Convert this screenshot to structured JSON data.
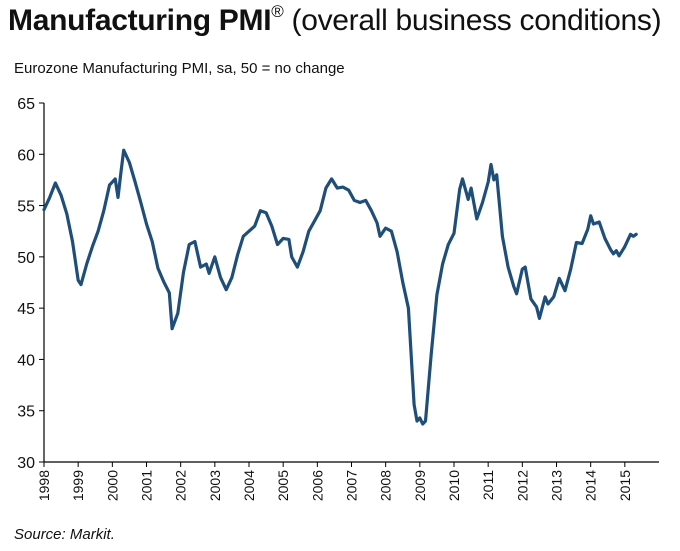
{
  "title": {
    "bold": "Manufacturing PMI",
    "reg": "®",
    "rest": " (overall business conditions)"
  },
  "subtitle": "Eurozone Manufacturing PMI, sa, 50 = no change",
  "source": "Source: Markit.",
  "colors": {
    "line": "#1f4e79",
    "axis": "#000000",
    "text": "#111111"
  },
  "chart_data": {
    "type": "line",
    "xlabel": "",
    "ylabel": "",
    "ylim": [
      30,
      65
    ],
    "xlim": [
      "1998-01",
      "2015-12"
    ],
    "yticks": [
      30,
      35,
      40,
      45,
      50,
      55,
      60,
      65
    ],
    "xticks": [
      "1998",
      "1999",
      "2000",
      "2001",
      "2002",
      "2003",
      "2004",
      "2005",
      "2006",
      "2007",
      "2008",
      "2009",
      "2010",
      "2011",
      "2012",
      "2013",
      "2014",
      "2015"
    ],
    "grid": false,
    "series": [
      {
        "name": "",
        "points": [
          [
            "1998-01",
            54.6
          ],
          [
            "1998-03",
            55.8
          ],
          [
            "1998-05",
            57.2
          ],
          [
            "1998-07",
            56.0
          ],
          [
            "1998-09",
            54.2
          ],
          [
            "1998-11",
            51.5
          ],
          [
            "1999-01",
            47.7
          ],
          [
            "1999-02",
            47.3
          ],
          [
            "1999-04",
            49.3
          ],
          [
            "1999-06",
            51.0
          ],
          [
            "1999-08",
            52.5
          ],
          [
            "1999-10",
            54.5
          ],
          [
            "1999-12",
            57.0
          ],
          [
            "2000-02",
            57.6
          ],
          [
            "2000-03",
            55.8
          ],
          [
            "2000-04",
            58.2
          ],
          [
            "2000-05",
            60.4
          ],
          [
            "2000-07",
            59.2
          ],
          [
            "2000-09",
            57.3
          ],
          [
            "2000-11",
            55.3
          ],
          [
            "2001-01",
            53.2
          ],
          [
            "2001-03",
            51.5
          ],
          [
            "2001-05",
            48.9
          ],
          [
            "2001-07",
            47.6
          ],
          [
            "2001-09",
            46.5
          ],
          [
            "2001-10",
            43.0
          ],
          [
            "2001-12",
            44.5
          ],
          [
            "2002-02",
            48.5
          ],
          [
            "2002-04",
            51.2
          ],
          [
            "2002-06",
            51.5
          ],
          [
            "2002-08",
            49.0
          ],
          [
            "2002-10",
            49.3
          ],
          [
            "2002-11",
            48.4
          ],
          [
            "2003-01",
            50.0
          ],
          [
            "2003-03",
            48.0
          ],
          [
            "2003-05",
            46.8
          ],
          [
            "2003-07",
            48.0
          ],
          [
            "2003-09",
            50.2
          ],
          [
            "2003-11",
            52.0
          ],
          [
            "2004-01",
            52.5
          ],
          [
            "2004-03",
            53.0
          ],
          [
            "2004-05",
            54.5
          ],
          [
            "2004-07",
            54.3
          ],
          [
            "2004-09",
            53.0
          ],
          [
            "2004-11",
            51.2
          ],
          [
            "2005-01",
            51.8
          ],
          [
            "2005-03",
            51.7
          ],
          [
            "2005-04",
            50.0
          ],
          [
            "2005-06",
            49.0
          ],
          [
            "2005-08",
            50.5
          ],
          [
            "2005-10",
            52.5
          ],
          [
            "2005-12",
            53.5
          ],
          [
            "2006-02",
            54.5
          ],
          [
            "2006-04",
            56.7
          ],
          [
            "2006-06",
            57.6
          ],
          [
            "2006-08",
            56.7
          ],
          [
            "2006-10",
            56.8
          ],
          [
            "2006-12",
            56.5
          ],
          [
            "2007-02",
            55.5
          ],
          [
            "2007-04",
            55.3
          ],
          [
            "2007-06",
            55.5
          ],
          [
            "2007-08",
            54.5
          ],
          [
            "2007-10",
            53.3
          ],
          [
            "2007-11",
            52.0
          ],
          [
            "2008-01",
            52.8
          ],
          [
            "2008-03",
            52.5
          ],
          [
            "2008-05",
            50.5
          ],
          [
            "2008-07",
            47.5
          ],
          [
            "2008-09",
            45.0
          ],
          [
            "2008-11",
            35.6
          ],
          [
            "2008-12",
            34.0
          ],
          [
            "2009-01",
            34.3
          ],
          [
            "2009-02",
            33.7
          ],
          [
            "2009-03",
            34.0
          ],
          [
            "2009-05",
            40.5
          ],
          [
            "2009-07",
            46.3
          ],
          [
            "2009-09",
            49.3
          ],
          [
            "2009-11",
            51.2
          ],
          [
            "2010-01",
            52.3
          ],
          [
            "2010-03",
            56.6
          ],
          [
            "2010-04",
            57.6
          ],
          [
            "2010-06",
            55.6
          ],
          [
            "2010-07",
            56.7
          ],
          [
            "2010-09",
            53.7
          ],
          [
            "2010-11",
            55.3
          ],
          [
            "2011-01",
            57.3
          ],
          [
            "2011-02",
            59.0
          ],
          [
            "2011-03",
            57.5
          ],
          [
            "2011-04",
            58.0
          ],
          [
            "2011-06",
            52.0
          ],
          [
            "2011-08",
            49.0
          ],
          [
            "2011-10",
            47.1
          ],
          [
            "2011-11",
            46.4
          ],
          [
            "2012-01",
            48.8
          ],
          [
            "2012-02",
            49.0
          ],
          [
            "2012-04",
            45.9
          ],
          [
            "2012-06",
            45.1
          ],
          [
            "2012-07",
            44.0
          ],
          [
            "2012-09",
            46.1
          ],
          [
            "2012-10",
            45.4
          ],
          [
            "2012-12",
            46.1
          ],
          [
            "2013-02",
            47.9
          ],
          [
            "2013-04",
            46.7
          ],
          [
            "2013-06",
            48.8
          ],
          [
            "2013-08",
            51.4
          ],
          [
            "2013-10",
            51.3
          ],
          [
            "2013-12",
            52.7
          ],
          [
            "2014-01",
            54.0
          ],
          [
            "2014-02",
            53.2
          ],
          [
            "2014-04",
            53.4
          ],
          [
            "2014-06",
            51.8
          ],
          [
            "2014-08",
            50.7
          ],
          [
            "2014-09",
            50.3
          ],
          [
            "2014-10",
            50.6
          ],
          [
            "2014-11",
            50.1
          ],
          [
            "2015-01",
            51.0
          ],
          [
            "2015-03",
            52.2
          ],
          [
            "2015-04",
            52.0
          ],
          [
            "2015-05",
            52.2
          ]
        ]
      }
    ]
  }
}
